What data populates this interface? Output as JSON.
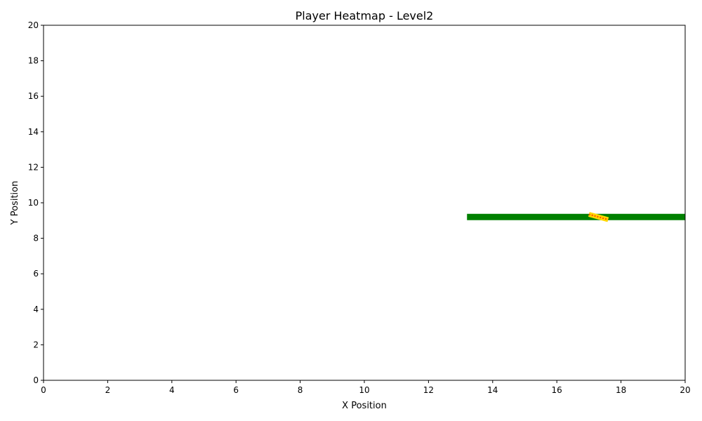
{
  "chart_data": {
    "type": "heatmap",
    "title": "Player Heatmap - Level2",
    "xlabel": "X Position",
    "ylabel": "Y Position",
    "xlim": [
      0,
      20
    ],
    "ylim": [
      0,
      20
    ],
    "xticks": [
      0,
      2,
      4,
      6,
      8,
      10,
      12,
      14,
      16,
      18,
      20
    ],
    "yticks": [
      0,
      2,
      4,
      6,
      8,
      10,
      12,
      14,
      16,
      18,
      20
    ],
    "grid": false,
    "colors": {
      "path": "#008000",
      "trail_outer": "#ffd700",
      "trail_inner": "#ff4500"
    },
    "segments": [
      {
        "kind": "path",
        "x": [
          13.2,
          20
        ],
        "y": [
          9.2,
          9.2
        ]
      },
      {
        "kind": "trail",
        "x": [
          17.0,
          17.6
        ],
        "y": [
          9.35,
          9.05
        ]
      }
    ]
  }
}
